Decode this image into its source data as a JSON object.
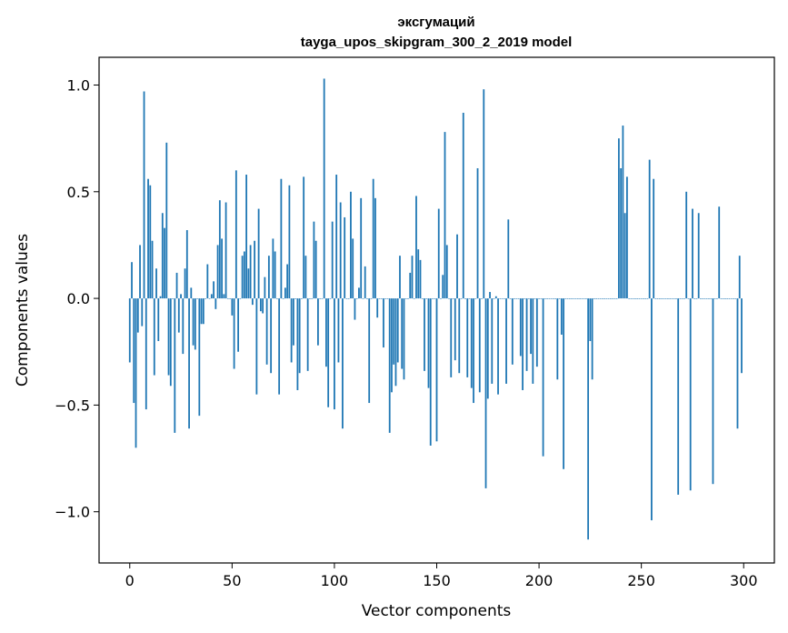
{
  "chart_data": {
    "type": "bar",
    "title": "эксгумаций",
    "subtitle": "tayga_upos_skipgram_300_2_2019 model",
    "xlabel": "Vector components",
    "ylabel": "Components values",
    "xlim": [
      -15,
      315
    ],
    "ylim": [
      -1.24,
      1.13
    ],
    "grid": false,
    "legend": "none",
    "bar_color": "#1f77b4",
    "xticks": [
      0,
      50,
      100,
      150,
      200,
      250,
      300
    ],
    "xtick_labels": [
      "0",
      "50",
      "100",
      "150",
      "200",
      "250",
      "300"
    ],
    "yticks": [
      -1.0,
      -0.5,
      0.0,
      0.5,
      1.0
    ],
    "ytick_labels": [
      "−1.0",
      "−0.5",
      "0.0",
      "0.5",
      "1.0"
    ],
    "values": [
      -0.3,
      0.17,
      -0.49,
      -0.7,
      -0.16,
      0.25,
      -0.13,
      0.97,
      -0.52,
      0.56,
      0.53,
      0.27,
      -0.36,
      0.14,
      -0.2,
      0.01,
      0.4,
      0.33,
      0.73,
      -0.36,
      -0.41,
      0.0,
      -0.63,
      0.12,
      -0.16,
      0.02,
      -0.26,
      0.14,
      0.32,
      -0.61,
      0.05,
      -0.22,
      -0.24,
      0.0,
      -0.55,
      -0.12,
      -0.12,
      0.0,
      0.16,
      0.0,
      0.02,
      0.08,
      -0.05,
      0.25,
      0.46,
      0.28,
      0.02,
      0.45,
      0.0,
      0.0,
      -0.08,
      -0.33,
      0.6,
      -0.25,
      0.0,
      0.2,
      0.22,
      0.58,
      0.14,
      0.25,
      -0.03,
      0.27,
      -0.45,
      0.42,
      -0.06,
      -0.07,
      0.1,
      -0.31,
      0.2,
      -0.35,
      0.28,
      0.22,
      0.0,
      -0.45,
      0.56,
      0.0,
      0.05,
      0.16,
      0.53,
      -0.3,
      -0.22,
      0.0,
      -0.43,
      -0.35,
      0.0,
      0.57,
      0.2,
      -0.34,
      0.0,
      0.0,
      0.36,
      0.27,
      -0.22,
      0.0,
      0.0,
      1.03,
      -0.32,
      -0.51,
      0.0,
      0.36,
      -0.52,
      0.58,
      -0.3,
      0.45,
      -0.61,
      0.38,
      0.0,
      0.0,
      0.5,
      0.28,
      -0.1,
      0.0,
      0.05,
      0.47,
      0.0,
      0.15,
      0.0,
      -0.49,
      0.0,
      0.56,
      0.47,
      -0.09,
      0.0,
      0.0,
      -0.23,
      0.0,
      0.0,
      -0.63,
      -0.44,
      -0.31,
      -0.41,
      -0.3,
      0.2,
      -0.33,
      -0.38,
      0.0,
      0.0,
      0.12,
      0.2,
      0.0,
      0.48,
      0.23,
      0.18,
      0.0,
      -0.34,
      0.0,
      -0.42,
      -0.69,
      0.0,
      0.0,
      -0.67,
      0.42,
      0.0,
      0.11,
      0.78,
      0.25,
      0.0,
      -0.37,
      0.0,
      -0.29,
      0.3,
      -0.35,
      0.0,
      0.87,
      0.0,
      -0.37,
      0.0,
      -0.42,
      -0.49,
      0.0,
      0.61,
      -0.44,
      0.0,
      0.98,
      -0.89,
      -0.47,
      0.03,
      -0.4,
      0.0,
      0.01,
      -0.45,
      0.0,
      0.0,
      0.0,
      -0.4,
      0.37,
      0.0,
      -0.31,
      0.0,
      0.0,
      0.0,
      -0.27,
      -0.43,
      0.0,
      -0.34,
      0.0,
      -0.26,
      -0.4,
      0.0,
      -0.32,
      0.0,
      0.0,
      -0.74,
      0.0,
      0.0,
      0.0,
      0.0,
      0.0,
      0.0,
      -0.38,
      0.0,
      -0.17,
      -0.8,
      0.0,
      0.0,
      0.0,
      0.0,
      0.0,
      0.0,
      0.0,
      0.0,
      0.0,
      0.0,
      0.0,
      -1.13,
      -0.2,
      -0.38,
      0.0,
      0.0,
      0.0,
      0.0,
      0.0,
      0.0,
      0.0,
      0.0,
      0.0,
      0.0,
      0.0,
      0.0,
      0.75,
      0.61,
      0.81,
      0.4,
      0.57,
      0.0,
      0.0,
      0.0,
      0.0,
      0.0,
      0.0,
      0.0,
      0.0,
      0.0,
      0.0,
      0.65,
      -1.04,
      0.56,
      0.0,
      0.0,
      0.0,
      0.0,
      0.0,
      0.0,
      0.0,
      0.0,
      0.0,
      0.0,
      0.0,
      -0.92,
      0.0,
      0.0,
      0.0,
      0.5,
      0.0,
      -0.9,
      0.42,
      0.0,
      0.0,
      0.4,
      0.0,
      0.0,
      0.0,
      0.0,
      0.0,
      0.0,
      -0.87,
      0.0,
      0.0,
      0.43,
      0.0,
      0.0,
      0.0,
      0.0,
      0.0,
      0.0,
      0.0,
      0.0,
      -0.61,
      0.2,
      -0.35
    ]
  }
}
